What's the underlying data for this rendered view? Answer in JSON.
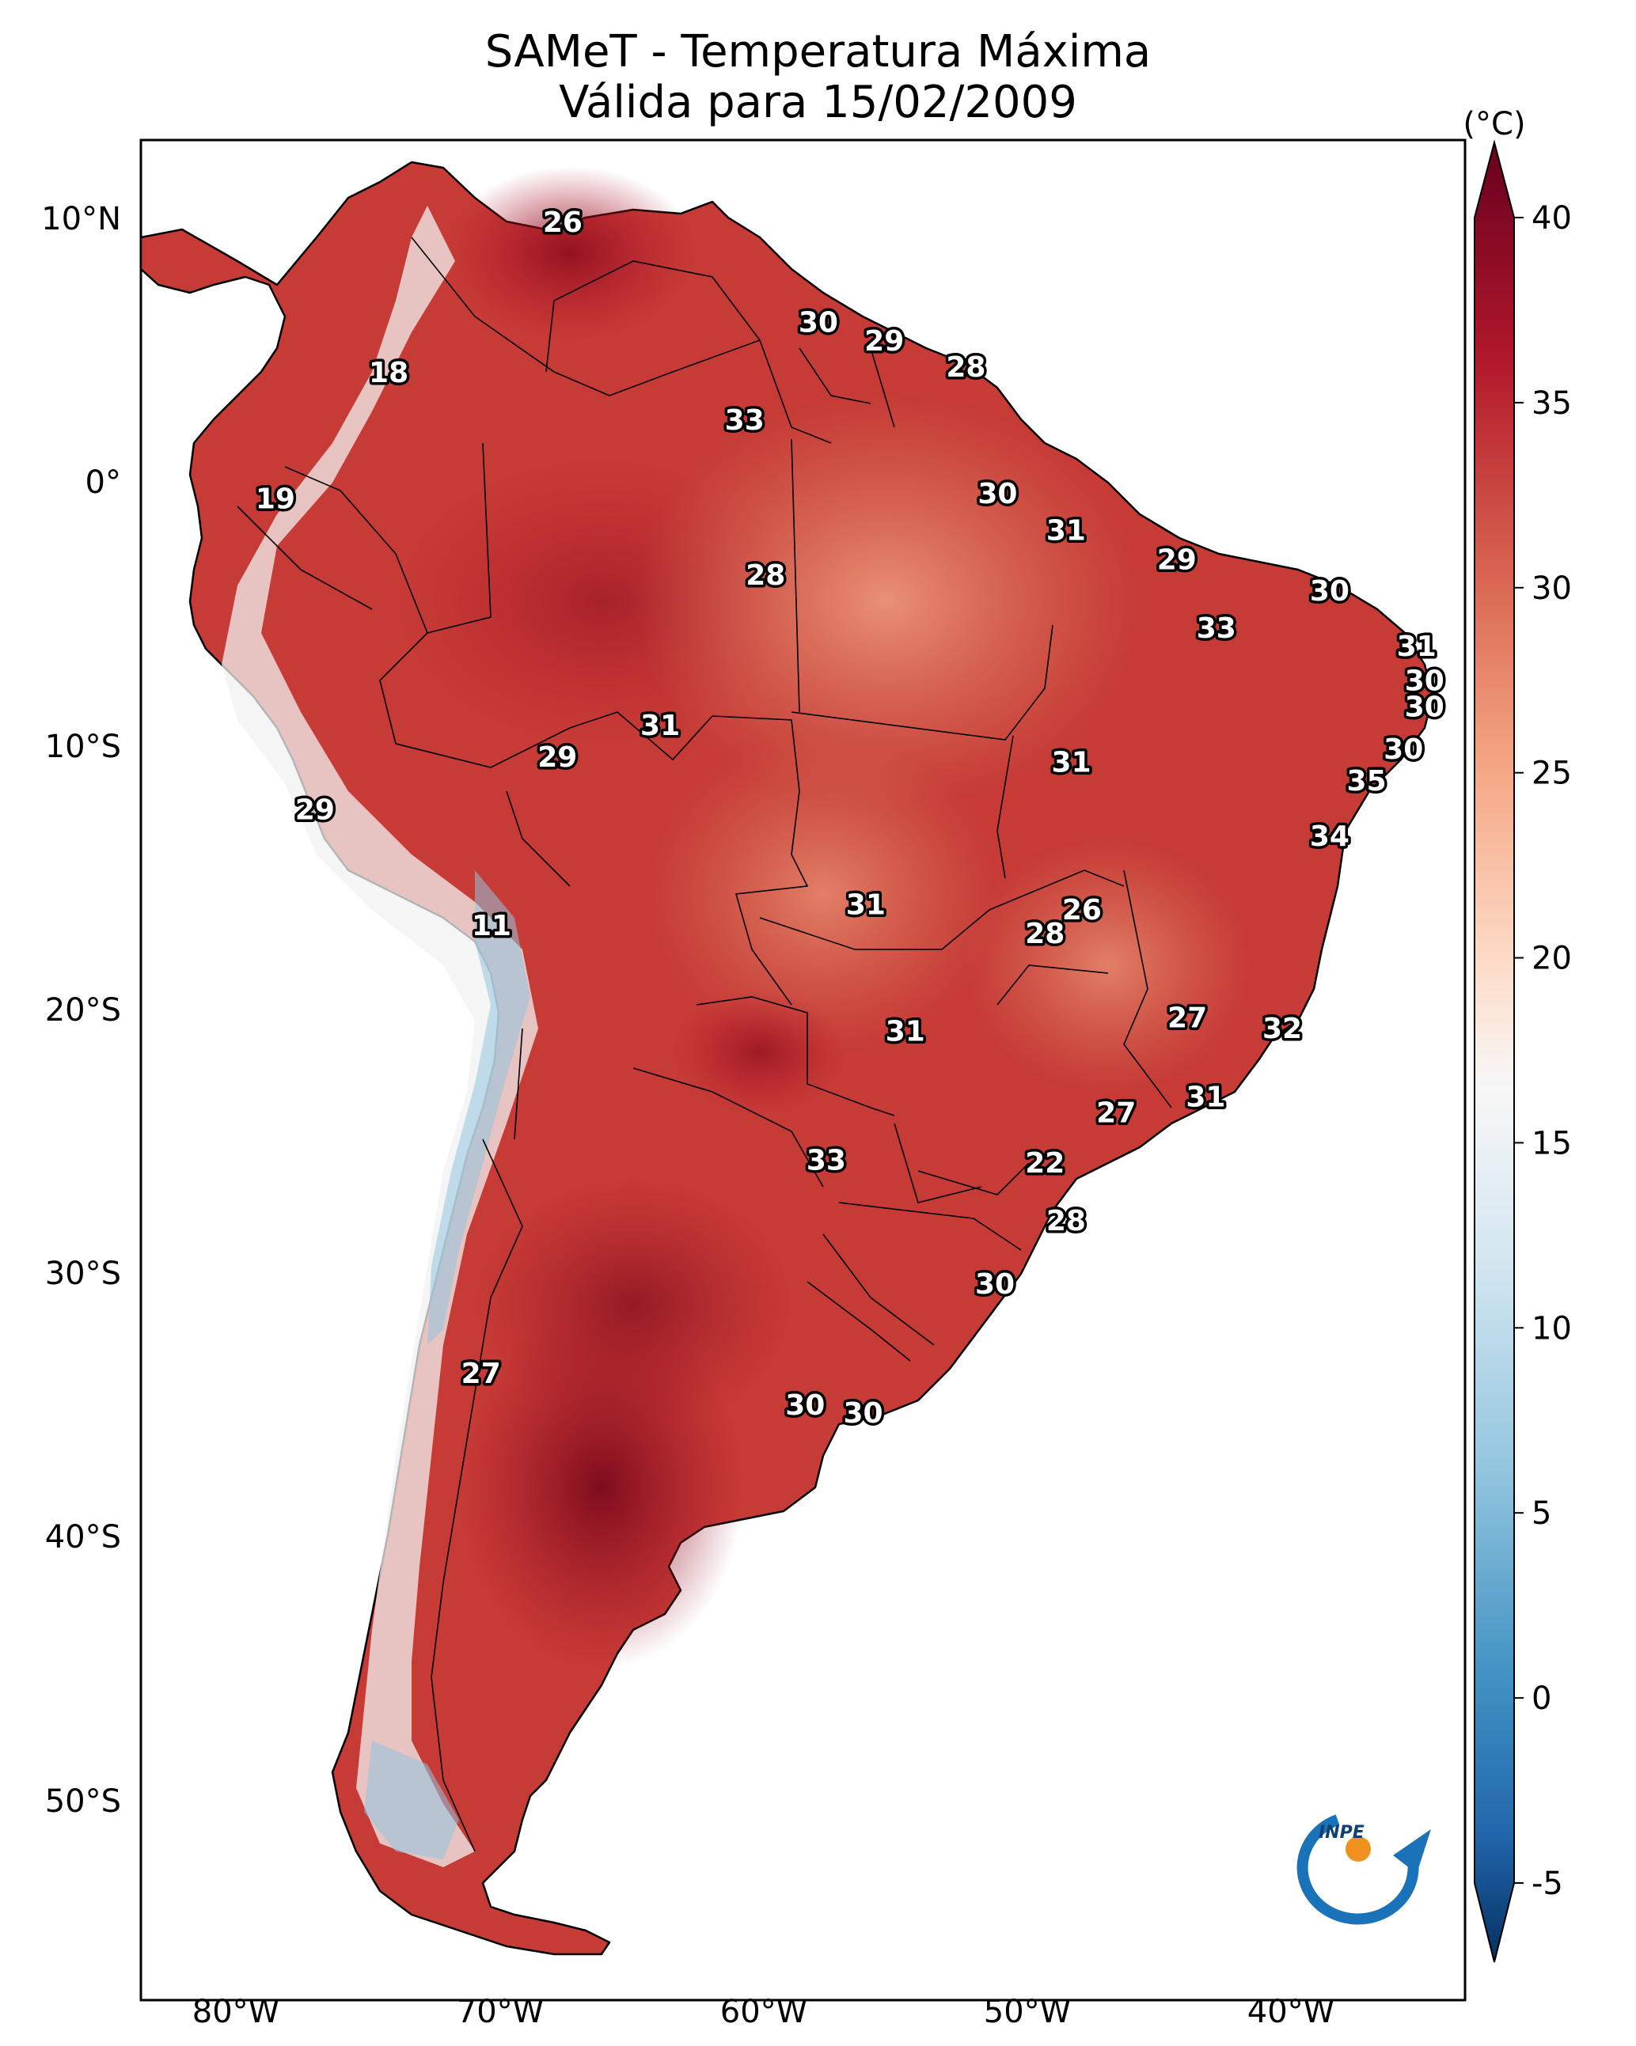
{
  "title": {
    "line1": "SAMeT - Temperatura Máxima",
    "line2": "Válida para 15/02/2009"
  },
  "axes": {
    "lon_labels": [
      "80°W",
      "70°W",
      "60°W",
      "50°W",
      "40°W"
    ],
    "lat_labels": [
      "10°N",
      "0°",
      "10°S",
      "20°S",
      "30°S",
      "40°S",
      "50°S"
    ]
  },
  "colorbar": {
    "unit": "(°C)",
    "ticks": [
      "40",
      "35",
      "30",
      "25",
      "20",
      "15",
      "10",
      "5",
      "0",
      "-5"
    ],
    "min": -5,
    "max": 40,
    "colors": [
      "#0b3d7a",
      "#2e7bb8",
      "#9ec9e2",
      "#f7f7f7",
      "#f4a383",
      "#c9393a",
      "#6d0019"
    ]
  },
  "logo": {
    "text": "INPE"
  },
  "chart_data": {
    "type": "map",
    "variable": "Temperatura Máxima (°C)",
    "date": "15/02/2009",
    "lon_range": [
      -82,
      -33
    ],
    "lat_range": [
      -56,
      13
    ],
    "station_values": [
      {
        "lon": -67.6,
        "lat": 10.3,
        "value": "26"
      },
      {
        "lon": -57.9,
        "lat": 6.5,
        "value": "30"
      },
      {
        "lon": -55.4,
        "lat": 5.8,
        "value": "29"
      },
      {
        "lon": -52.3,
        "lat": 4.8,
        "value": "28"
      },
      {
        "lon": -74.2,
        "lat": 4.6,
        "value": "18"
      },
      {
        "lon": -60.7,
        "lat": 2.8,
        "value": "33"
      },
      {
        "lon": -78.5,
        "lat": -0.2,
        "value": "19"
      },
      {
        "lon": -51.1,
        "lat": 0.0,
        "value": "30"
      },
      {
        "lon": -48.5,
        "lat": -1.4,
        "value": "31"
      },
      {
        "lon": -59.9,
        "lat": -3.1,
        "value": "28"
      },
      {
        "lon": -44.3,
        "lat": -2.5,
        "value": "29"
      },
      {
        "lon": -38.5,
        "lat": -3.7,
        "value": "30"
      },
      {
        "lon": -42.8,
        "lat": -5.1,
        "value": "33"
      },
      {
        "lon": -35.2,
        "lat": -5.8,
        "value": "31"
      },
      {
        "lon": -34.9,
        "lat": -7.1,
        "value": "30"
      },
      {
        "lon": -34.9,
        "lat": -8.1,
        "value": "30"
      },
      {
        "lon": -63.9,
        "lat": -8.8,
        "value": "31"
      },
      {
        "lon": -67.8,
        "lat": -10.0,
        "value": "29"
      },
      {
        "lon": -48.3,
        "lat": -10.2,
        "value": "31"
      },
      {
        "lon": -35.7,
        "lat": -9.7,
        "value": "30"
      },
      {
        "lon": -37.1,
        "lat": -10.9,
        "value": "35"
      },
      {
        "lon": -77.0,
        "lat": -12.0,
        "value": "29"
      },
      {
        "lon": -38.5,
        "lat": -13.0,
        "value": "34"
      },
      {
        "lon": -56.1,
        "lat": -15.6,
        "value": "31"
      },
      {
        "lon": -47.9,
        "lat": -15.8,
        "value": "26"
      },
      {
        "lon": -49.3,
        "lat": -16.7,
        "value": "28"
      },
      {
        "lon": -70.3,
        "lat": -16.4,
        "value": "11"
      },
      {
        "lon": -43.9,
        "lat": -19.9,
        "value": "27"
      },
      {
        "lon": -40.3,
        "lat": -20.3,
        "value": "32"
      },
      {
        "lon": -54.6,
        "lat": -20.4,
        "value": "31"
      },
      {
        "lon": -43.2,
        "lat": -22.9,
        "value": "31"
      },
      {
        "lon": -46.6,
        "lat": -23.5,
        "value": "27"
      },
      {
        "lon": -57.6,
        "lat": -25.3,
        "value": "33"
      },
      {
        "lon": -49.3,
        "lat": -25.4,
        "value": "22"
      },
      {
        "lon": -48.5,
        "lat": -27.6,
        "value": "28"
      },
      {
        "lon": -51.2,
        "lat": -30.0,
        "value": "30"
      },
      {
        "lon": -70.7,
        "lat": -33.4,
        "value": "27"
      },
      {
        "lon": -58.4,
        "lat": -34.6,
        "value": "30"
      },
      {
        "lon": -56.2,
        "lat": -34.9,
        "value": "30"
      }
    ]
  }
}
